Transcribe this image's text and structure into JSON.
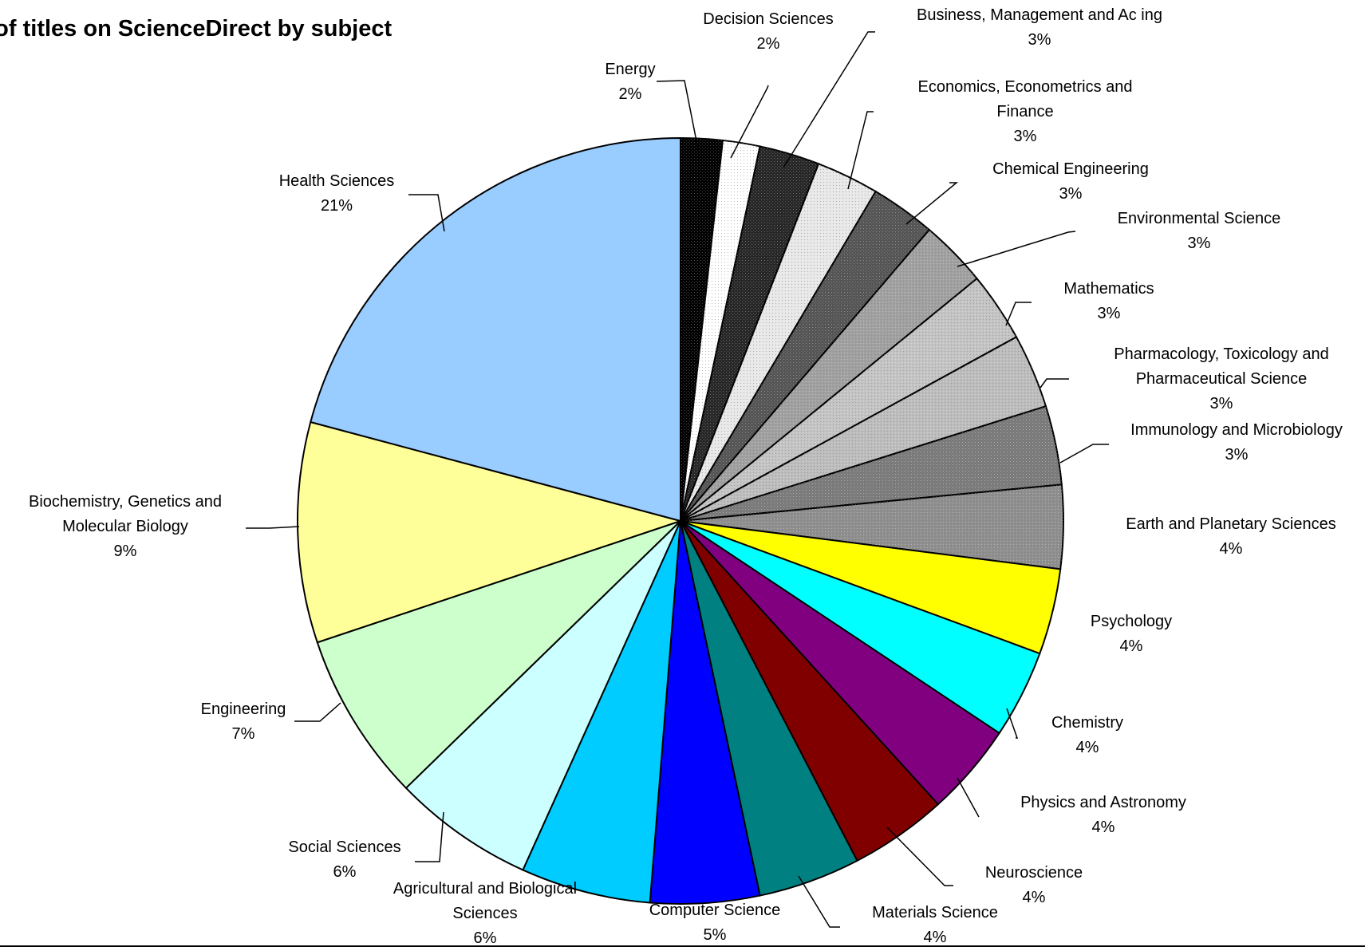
{
  "chart_data": {
    "type": "pie",
    "title": "ber of titles on ScienceDirect by subject",
    "start": "12 o'clock",
    "direction": "clockwise",
    "slices": [
      {
        "label": [
          "Energy"
        ],
        "percent_label": "2%",
        "value": 1.8,
        "fill": "#000000",
        "pattern": "dots"
      },
      {
        "label": [
          "Decision Sciences"
        ],
        "percent_label": "2%",
        "value": 1.6,
        "fill": "#ffffff",
        "pattern": "dots"
      },
      {
        "label": [
          "Business, Management and Ac ing"
        ],
        "percent_label": "3%",
        "value": 2.6,
        "fill": "#262626",
        "pattern": "dots"
      },
      {
        "label": [
          "Economics, Econometrics and",
          "Finance"
        ],
        "percent_label": "3%",
        "value": 2.7,
        "fill": "#e8e8e8",
        "pattern": "dots"
      },
      {
        "label": [
          "Chemical Engineering"
        ],
        "percent_label": "3%",
        "value": 2.8,
        "fill": "#555555",
        "pattern": "dots"
      },
      {
        "label": [
          "Environmental Science"
        ],
        "percent_label": "3%",
        "value": 2.9,
        "fill": "#a0a0a0",
        "pattern": "dots"
      },
      {
        "label": [
          "Mathematics"
        ],
        "percent_label": "3%",
        "value": 3.0,
        "fill": "#c4c4c4",
        "pattern": "dots"
      },
      {
        "label": [
          "Pharmacology, Toxicology and",
          "Pharmaceutical Science"
        ],
        "percent_label": "3%",
        "value": 3.2,
        "fill": "#bdbdbd",
        "pattern": "dots"
      },
      {
        "label": [
          "Immunology and Microbiology"
        ],
        "percent_label": "3%",
        "value": 3.4,
        "fill": "#7b7b7b",
        "pattern": "dots"
      },
      {
        "label": [
          "Earth and Planetary Sciences"
        ],
        "percent_label": "4%",
        "value": 3.6,
        "fill": "#8e8e8e",
        "pattern": "dots"
      },
      {
        "label": [
          "Psychology"
        ],
        "percent_label": "4%",
        "value": 3.7,
        "fill": "#ffff00"
      },
      {
        "label": [
          "Chemistry"
        ],
        "percent_label": "4%",
        "value": 3.8,
        "fill": "#00ffff"
      },
      {
        "label": [
          "Physics and Astronomy"
        ],
        "percent_label": "4%",
        "value": 4.0,
        "fill": "#800080"
      },
      {
        "label": [
          "Neuroscience"
        ],
        "percent_label": "4%",
        "value": 4.2,
        "fill": "#800000"
      },
      {
        "label": [
          "Materials Science"
        ],
        "percent_label": "4%",
        "value": 4.4,
        "fill": "#008080"
      },
      {
        "label": [
          "Computer Science"
        ],
        "percent_label": "5%",
        "value": 4.7,
        "fill": "#0000ff"
      },
      {
        "label": [
          "Agricultural and Biological",
          "Sciences"
        ],
        "percent_label": "6%",
        "value": 5.6,
        "fill": "#00ccff"
      },
      {
        "label": [
          "Social Sciences"
        ],
        "percent_label": "6%",
        "value": 6.1,
        "fill": "#ccffff"
      },
      {
        "label": [
          "Engineering"
        ],
        "percent_label": "7%",
        "value": 7.3,
        "fill": "#ccffcc"
      },
      {
        "label": [
          "Biochemistry, Genetics and",
          "Molecular Biology"
        ],
        "percent_label": "9%",
        "value": 9.5,
        "fill": "#ffff99"
      },
      {
        "label": [
          "Health Sciences"
        ],
        "percent_label": "21%",
        "value": 21.3,
        "fill": "#99ccff"
      }
    ]
  }
}
